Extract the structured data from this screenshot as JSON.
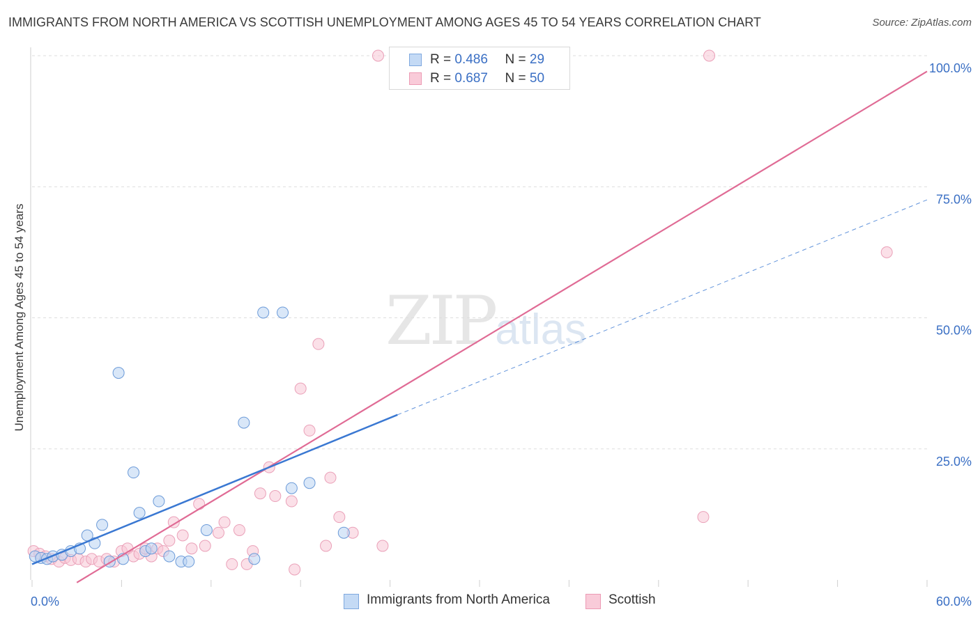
{
  "header": {
    "title": "IMMIGRANTS FROM NORTH AMERICA VS SCOTTISH UNEMPLOYMENT AMONG AGES 45 TO 54 YEARS CORRELATION CHART",
    "source": "Source: ZipAtlas.com"
  },
  "watermark": {
    "zip": "ZIP",
    "atlas": "atlas"
  },
  "legend": {
    "rows": [
      {
        "r_label": "R =",
        "r_value": "0.486",
        "n_label": "N =",
        "n_value": "29",
        "color": "#a8c8f0"
      },
      {
        "r_label": "R =",
        "r_value": "0.687",
        "n_label": "N =",
        "n_value": "50",
        "color": "#f7b8cb"
      }
    ]
  },
  "bottom_legend": {
    "series_a": "Immigrants from North America",
    "series_b": "Scottish"
  },
  "chart_data": {
    "type": "scatter",
    "title": "IMMIGRANTS FROM NORTH AMERICA VS SCOTTISH UNEMPLOYMENT AMONG AGES 45 TO 54 YEARS CORRELATION CHART",
    "xlabel": "",
    "ylabel": "Unemployment Among Ages 45 to 54 years",
    "xlim": [
      0,
      60
    ],
    "ylim": [
      0,
      100
    ],
    "x_tick_labels": [
      "0.0%",
      "60.0%"
    ],
    "y_tick_labels": [
      "100.0%",
      "75.0%",
      "50.0%",
      "25.0%"
    ],
    "y_ticks": [
      100,
      75,
      50,
      25
    ],
    "grid": true,
    "colors": {
      "blue": "#3a78d2",
      "blue_fill": "#b9d4f3",
      "pink": "#e06b95",
      "pink_fill": "#f7c6d5",
      "tick_blue": "#3a6fc4"
    },
    "series": [
      {
        "name": "Immigrants from North America",
        "R": 0.486,
        "N": 29,
        "points": [
          [
            0.2,
            4.5
          ],
          [
            0.6,
            4.2
          ],
          [
            1.0,
            4.0
          ],
          [
            1.4,
            4.5
          ],
          [
            2.0,
            4.8
          ],
          [
            2.6,
            5.5
          ],
          [
            3.2,
            6.0
          ],
          [
            3.7,
            8.5
          ],
          [
            4.2,
            7.0
          ],
          [
            4.7,
            10.5
          ],
          [
            5.2,
            3.5
          ],
          [
            5.8,
            39.5
          ],
          [
            6.1,
            4.0
          ],
          [
            6.8,
            20.5
          ],
          [
            7.2,
            12.8
          ],
          [
            7.6,
            5.5
          ],
          [
            8.0,
            6.0
          ],
          [
            8.5,
            15.0
          ],
          [
            9.2,
            4.5
          ],
          [
            10.0,
            3.5
          ],
          [
            10.5,
            3.5
          ],
          [
            11.7,
            9.5
          ],
          [
            14.2,
            30.0
          ],
          [
            14.9,
            4.0
          ],
          [
            15.5,
            51.0
          ],
          [
            16.8,
            51.0
          ],
          [
            17.4,
            17.5
          ],
          [
            18.6,
            18.5
          ],
          [
            20.9,
            9.0
          ]
        ],
        "trend_solid": [
          [
            0,
            3.0
          ],
          [
            24.5,
            31.5
          ]
        ],
        "trend_dashed": [
          [
            24.5,
            31.5
          ],
          [
            60,
            72.5
          ]
        ]
      },
      {
        "name": "Scottish",
        "R": 0.687,
        "N": 50,
        "points": [
          [
            0.1,
            5.5
          ],
          [
            0.5,
            5.0
          ],
          [
            0.9,
            4.5
          ],
          [
            1.3,
            4.0
          ],
          [
            1.8,
            3.5
          ],
          [
            2.2,
            4.2
          ],
          [
            2.6,
            3.8
          ],
          [
            3.1,
            4.0
          ],
          [
            3.6,
            3.5
          ],
          [
            4.0,
            4.0
          ],
          [
            4.5,
            3.5
          ],
          [
            5.0,
            4.0
          ],
          [
            5.5,
            3.5
          ],
          [
            6.0,
            5.5
          ],
          [
            6.4,
            6.0
          ],
          [
            6.8,
            4.5
          ],
          [
            7.2,
            5.0
          ],
          [
            7.6,
            6.0
          ],
          [
            8.0,
            4.5
          ],
          [
            8.4,
            6.0
          ],
          [
            8.8,
            5.5
          ],
          [
            9.2,
            7.5
          ],
          [
            9.5,
            11.0
          ],
          [
            10.1,
            8.5
          ],
          [
            10.7,
            6.0
          ],
          [
            11.2,
            14.5
          ],
          [
            11.6,
            6.5
          ],
          [
            12.5,
            9.0
          ],
          [
            12.9,
            11.0
          ],
          [
            13.4,
            3.0
          ],
          [
            13.9,
            9.5
          ],
          [
            14.4,
            3.0
          ],
          [
            14.8,
            5.5
          ],
          [
            15.3,
            16.5
          ],
          [
            15.9,
            21.5
          ],
          [
            16.3,
            16.0
          ],
          [
            17.4,
            15.0
          ],
          [
            17.6,
            2.0
          ],
          [
            18.0,
            36.5
          ],
          [
            18.6,
            28.5
          ],
          [
            19.2,
            45.0
          ],
          [
            19.7,
            6.5
          ],
          [
            20.0,
            19.5
          ],
          [
            20.6,
            12.0
          ],
          [
            21.5,
            9.0
          ],
          [
            23.5,
            6.5
          ],
          [
            23.2,
            100.0
          ],
          [
            45.4,
            100.0
          ],
          [
            45.0,
            12.0
          ],
          [
            57.3,
            62.5
          ]
        ],
        "trend_solid": [
          [
            3.0,
            -0.5
          ],
          [
            60,
            97.0
          ]
        ]
      }
    ]
  }
}
